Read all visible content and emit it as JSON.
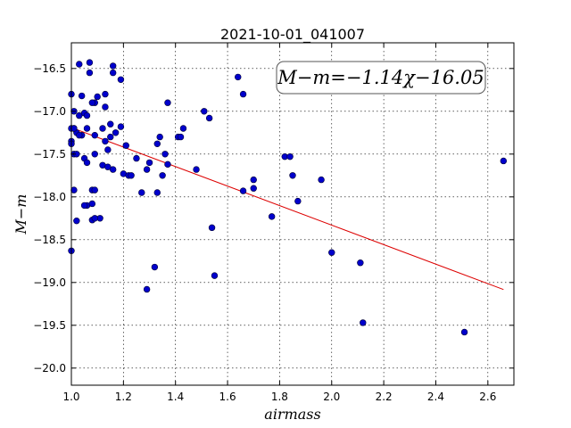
{
  "chart_data": {
    "type": "scatter",
    "title": "2021-10-01_041007",
    "xlabel": "airmass",
    "ylabel": "M−m",
    "xlim": [
      1.0,
      2.7
    ],
    "ylim": [
      -20.2,
      -16.2
    ],
    "y_inverted": true,
    "grid": true,
    "x_ticks": [
      1.0,
      1.2,
      1.4,
      1.6,
      1.8,
      2.0,
      2.2,
      2.4,
      2.6
    ],
    "y_ticks": [
      -16.5,
      -17.0,
      -17.5,
      -18.0,
      -18.5,
      -19.0,
      -19.5,
      -20.0
    ],
    "x_tick_labels": [
      "1.0",
      "1.2",
      "1.4",
      "1.6",
      "1.8",
      "2.0",
      "2.2",
      "2.4",
      "2.6"
    ],
    "y_tick_labels": [
      "−16.5",
      "−17.0",
      "−17.5",
      "−18.0",
      "−18.5",
      "−19.0",
      "−19.5",
      "−20.0"
    ],
    "annotation": "M−m=−1.14χ−16.05",
    "fit": {
      "slope": -1.14,
      "intercept": -16.05,
      "x_range": [
        1.0,
        2.66
      ]
    },
    "colors": {
      "points": "#0000cc",
      "fit_line": "#dd0000"
    },
    "x": [
      1.0,
      1.0,
      1.01,
      1.01,
      1.02,
      1.03,
      1.04,
      1.05,
      1.06,
      1.07,
      1.07,
      1.09,
      1.09,
      1.1,
      1.12,
      1.13,
      1.15,
      1.16,
      1.16,
      1.19,
      1.0,
      1.01,
      1.02,
      1.03,
      1.04,
      1.05,
      1.06,
      1.06,
      1.08,
      1.09,
      1.12,
      1.13,
      1.14,
      1.15,
      1.17,
      1.19,
      1.21,
      1.01,
      1.03,
      1.06,
      1.08,
      1.11,
      1.13,
      1.14,
      1.16,
      1.2,
      1.22,
      1.23,
      1.25,
      1.29,
      1.3,
      1.33,
      1.34,
      1.35,
      1.36,
      1.37,
      1.33,
      1.41,
      1.42,
      1.43,
      1.48,
      1.51,
      1.53,
      1.37,
      1.0,
      1.01,
      1.02,
      1.05,
      1.08,
      1.08,
      1.09,
      1.09,
      1.27,
      1.0,
      1.32,
      1.29,
      1.54,
      1.55,
      1.64,
      1.66,
      1.66,
      1.7,
      1.7,
      1.77,
      1.82,
      1.84,
      1.85,
      1.87,
      1.96,
      2.0,
      2.11,
      2.12,
      2.51,
      2.66
    ],
    "y": [
      -17.2,
      -16.8,
      -17.0,
      -17.2,
      -17.25,
      -17.05,
      -17.28,
      -17.55,
      -17.6,
      -16.43,
      -16.55,
      -16.9,
      -17.28,
      -16.83,
      -17.2,
      -16.8,
      -17.3,
      -16.47,
      -16.55,
      -16.63,
      -17.35,
      -17.5,
      -17.5,
      -16.45,
      -16.82,
      -17.02,
      -17.05,
      -17.2,
      -16.9,
      -17.5,
      -17.63,
      -17.35,
      -17.45,
      -17.15,
      -17.25,
      -17.18,
      -17.4,
      -17.2,
      -17.28,
      -18.1,
      -18.08,
      -18.25,
      -16.95,
      -17.65,
      -17.68,
      -17.73,
      -17.75,
      -17.75,
      -17.55,
      -17.68,
      -17.6,
      -17.38,
      -17.3,
      -17.75,
      -17.5,
      -17.62,
      -17.95,
      -17.3,
      -17.3,
      -17.2,
      -17.68,
      -17.0,
      -17.08,
      -16.9,
      -18.63,
      -17.92,
      -18.28,
      -18.1,
      -18.27,
      -17.92,
      -17.92,
      -18.25,
      -17.95,
      -17.38,
      -18.82,
      -19.08,
      -18.36,
      -18.92,
      -16.6,
      -16.8,
      -17.93,
      -17.9,
      -17.8,
      -18.23,
      -17.53,
      -17.53,
      -17.75,
      -18.05,
      -17.8,
      -18.65,
      -18.77,
      -19.47,
      -19.58,
      -17.58
    ]
  }
}
